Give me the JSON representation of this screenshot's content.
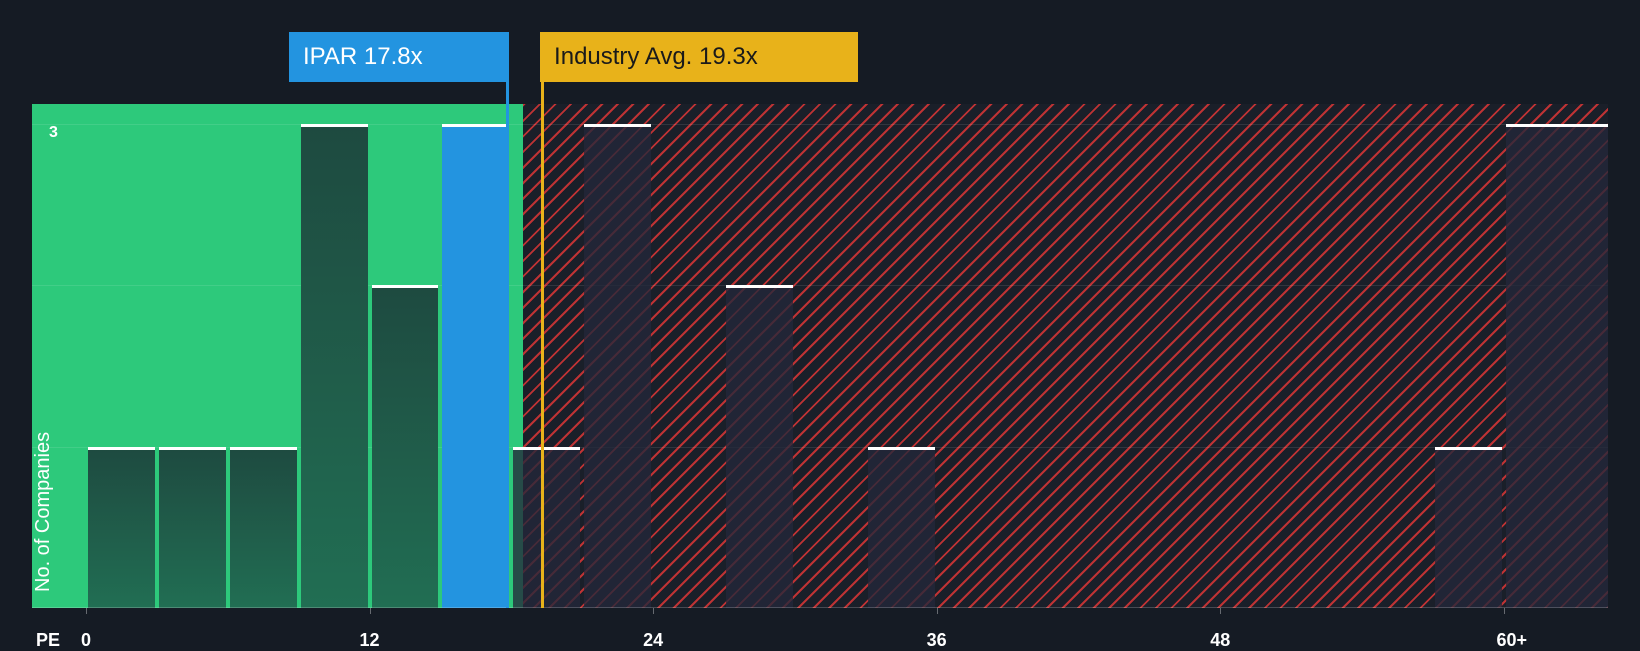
{
  "chart_data": {
    "type": "bar",
    "title": "",
    "xlabel": "PE",
    "ylabel": "No. of Companies",
    "x_ticks": [
      "0",
      "12",
      "24",
      "36",
      "48",
      "60+"
    ],
    "y_ticks": [
      "3"
    ],
    "ylim": [
      0,
      3
    ],
    "bin_width": 3,
    "bins": [
      {
        "range": "0-3",
        "start": 0,
        "count": 1
      },
      {
        "range": "3-6",
        "start": 3,
        "count": 1
      },
      {
        "range": "6-9",
        "start": 6,
        "count": 1
      },
      {
        "range": "9-12",
        "start": 9,
        "count": 3
      },
      {
        "range": "12-15",
        "start": 12,
        "count": 2
      },
      {
        "range": "15-18",
        "start": 15,
        "count": 3
      },
      {
        "range": "18-21",
        "start": 18,
        "count": 1
      },
      {
        "range": "21-24",
        "start": 21,
        "count": 3
      },
      {
        "range": "24-27",
        "start": 24,
        "count": 0
      },
      {
        "range": "27-30",
        "start": 27,
        "count": 2
      },
      {
        "range": "30-33",
        "start": 30,
        "count": 0
      },
      {
        "range": "33-36",
        "start": 33,
        "count": 1
      },
      {
        "range": "57-60",
        "start": 57,
        "count": 1
      },
      {
        "range": "60+",
        "start": 60,
        "count": 3
      }
    ],
    "subject": {
      "ticker": "IPAR",
      "pe": 17.8,
      "label": "IPAR 17.8x",
      "color": "#2394e0"
    },
    "industry_avg": {
      "pe": 19.3,
      "label": "Industry Avg. 19.3x",
      "color": "#e8b21a"
    },
    "zones": {
      "below_avg_color": "#2dc97b",
      "above_avg_color": "#da3636"
    },
    "grid": true
  }
}
